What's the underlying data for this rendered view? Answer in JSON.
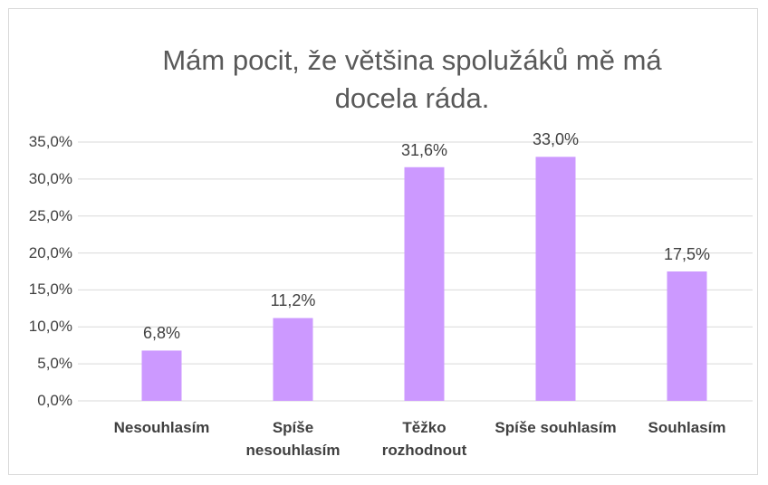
{
  "chart_data": {
    "type": "bar",
    "title": "Mám pocit, že většina spolužáků mě má docela ráda.",
    "categories": [
      "Nesouhlasím",
      "Spíše nesouhlasím",
      "Těžko rozhodnout",
      "Spíše souhlasím",
      "Souhlasím"
    ],
    "values": [
      6.8,
      11.2,
      31.6,
      33.0,
      17.5
    ],
    "value_labels": [
      "6,8%",
      "11,2%",
      "31,6%",
      "33,0%",
      "17,5%"
    ],
    "color": "#cc99ff",
    "ylim": [
      0,
      35
    ],
    "yticks": [
      {
        "value": 0,
        "label": "0,0%"
      },
      {
        "value": 5,
        "label": "5,0%"
      },
      {
        "value": 10,
        "label": "10,0%"
      },
      {
        "value": 15,
        "label": "15,0%"
      },
      {
        "value": 20,
        "label": "20,0%"
      },
      {
        "value": 25,
        "label": "25,0%"
      },
      {
        "value": 30,
        "label": "30,0%"
      },
      {
        "value": 35,
        "label": "35,0%"
      }
    ],
    "grid": true
  }
}
